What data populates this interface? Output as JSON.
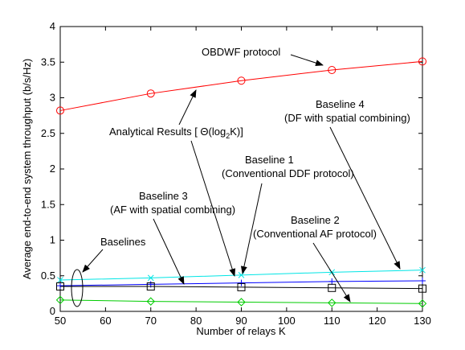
{
  "chart_data": {
    "type": "line",
    "x": [
      50,
      70,
      90,
      110,
      130
    ],
    "xlim": [
      50,
      130
    ],
    "ylim": [
      0,
      4
    ],
    "xticks": [
      "50",
      "60",
      "70",
      "80",
      "90",
      "100",
      "110",
      "120",
      "130"
    ],
    "yticks": [
      "0",
      "0.5",
      "1",
      "1.5",
      "2",
      "2.5",
      "3",
      "3.5",
      "4"
    ],
    "xlabel": "Number of relays  K",
    "ylabel": "Average end-to-end system throughput (b/s/Hz)",
    "grid": false,
    "series": [
      {
        "values": [
          2.82,
          3.06,
          3.24,
          3.39,
          3.51
        ],
        "color": "#ff0000",
        "marker": "circle"
      },
      {
        "values": [
          0.44,
          0.47,
          0.51,
          0.55,
          0.58
        ],
        "color": "#00e5e5",
        "marker": "x"
      },
      {
        "values": [
          0.36,
          0.38,
          0.4,
          0.42,
          0.43
        ],
        "color": "#0000ff",
        "marker": "plus"
      },
      {
        "values": [
          0.35,
          0.35,
          0.34,
          0.33,
          0.32
        ],
        "color": "#000000",
        "marker": "square"
      },
      {
        "values": [
          0.16,
          0.14,
          0.13,
          0.12,
          0.11
        ],
        "color": "#00cc00",
        "marker": "diamond"
      }
    ],
    "annotations": {
      "obdwf": "OBDWF protocol",
      "analytical": "Analytical Results [ Θ(log",
      "analytical_sub": "2",
      "analytical_end": "K)]",
      "b4_line1": "Baseline 4",
      "b4_line2": "(DF with spatial combining)",
      "b1_line1": "Baseline 1",
      "b1_line2": "(Conventional DDF protocol)",
      "b3_line1": "Baseline 3",
      "b3_line2": "(AF with spatial combining)",
      "b2_line1": "Baseline 2",
      "b2_line2": "(Conventional AF protocol)",
      "baselines": "Baselines"
    }
  }
}
